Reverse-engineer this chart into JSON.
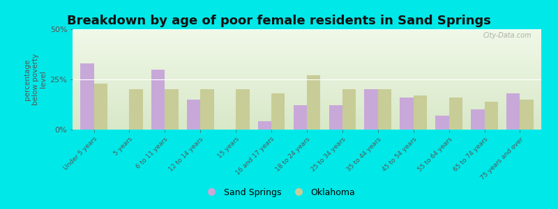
{
  "title": "Breakdown by age of poor female residents in Sand Springs",
  "ylabel": "percentage\nbelow poverty\nlevel",
  "categories": [
    "Under 5 years",
    "5 years",
    "6 to 11 years",
    "12 to 14 years",
    "15 years",
    "16 and 17 years",
    "18 to 24 years",
    "25 to 34 years",
    "35 to 44 years",
    "45 to 54 years",
    "55 to 64 years",
    "65 to 74 years",
    "75 years and over"
  ],
  "sand_springs": [
    33,
    0,
    30,
    15,
    0,
    4,
    12,
    12,
    20,
    16,
    7,
    10,
    18
  ],
  "oklahoma": [
    23,
    20,
    20,
    20,
    20,
    18,
    27,
    20,
    20,
    17,
    16,
    14,
    15
  ],
  "ss_color": "#c8a8d8",
  "ok_color": "#c8cc96",
  "background_top": "#d8e8c8",
  "background_bottom": "#f0f8e8",
  "outer_bg": "#00e8e8",
  "ylim": [
    0,
    50
  ],
  "yticks": [
    0,
    25,
    50
  ],
  "ytick_labels": [
    "0%",
    "25%",
    "50%"
  ],
  "bar_width": 0.38,
  "legend_ss": "Sand Springs",
  "legend_ok": "Oklahoma",
  "title_fontsize": 13,
  "axis_label_fontsize": 7.5,
  "tick_fontsize": 8,
  "watermark": "City-Data.com",
  "label_color": "#555555"
}
